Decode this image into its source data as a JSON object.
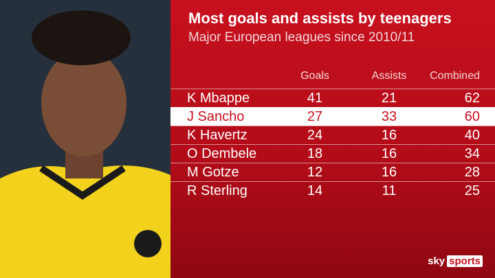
{
  "header": {
    "title": "Most goals and assists by teenagers",
    "subtitle": "Major European leagues since 2010/11"
  },
  "table": {
    "columns": [
      "Goals",
      "Assists",
      "Combined"
    ],
    "rows": [
      [
        "K Mbappe",
        41,
        21,
        62
      ],
      [
        "J Sancho",
        27,
        33,
        60
      ],
      [
        "K Havertz",
        24,
        16,
        40
      ],
      [
        "O Dembele",
        18,
        16,
        34
      ],
      [
        "M Gotze",
        12,
        16,
        28
      ],
      [
        "R Sterling",
        14,
        11,
        25
      ]
    ]
  },
  "logo": [
    "sky",
    "sports"
  ]
}
